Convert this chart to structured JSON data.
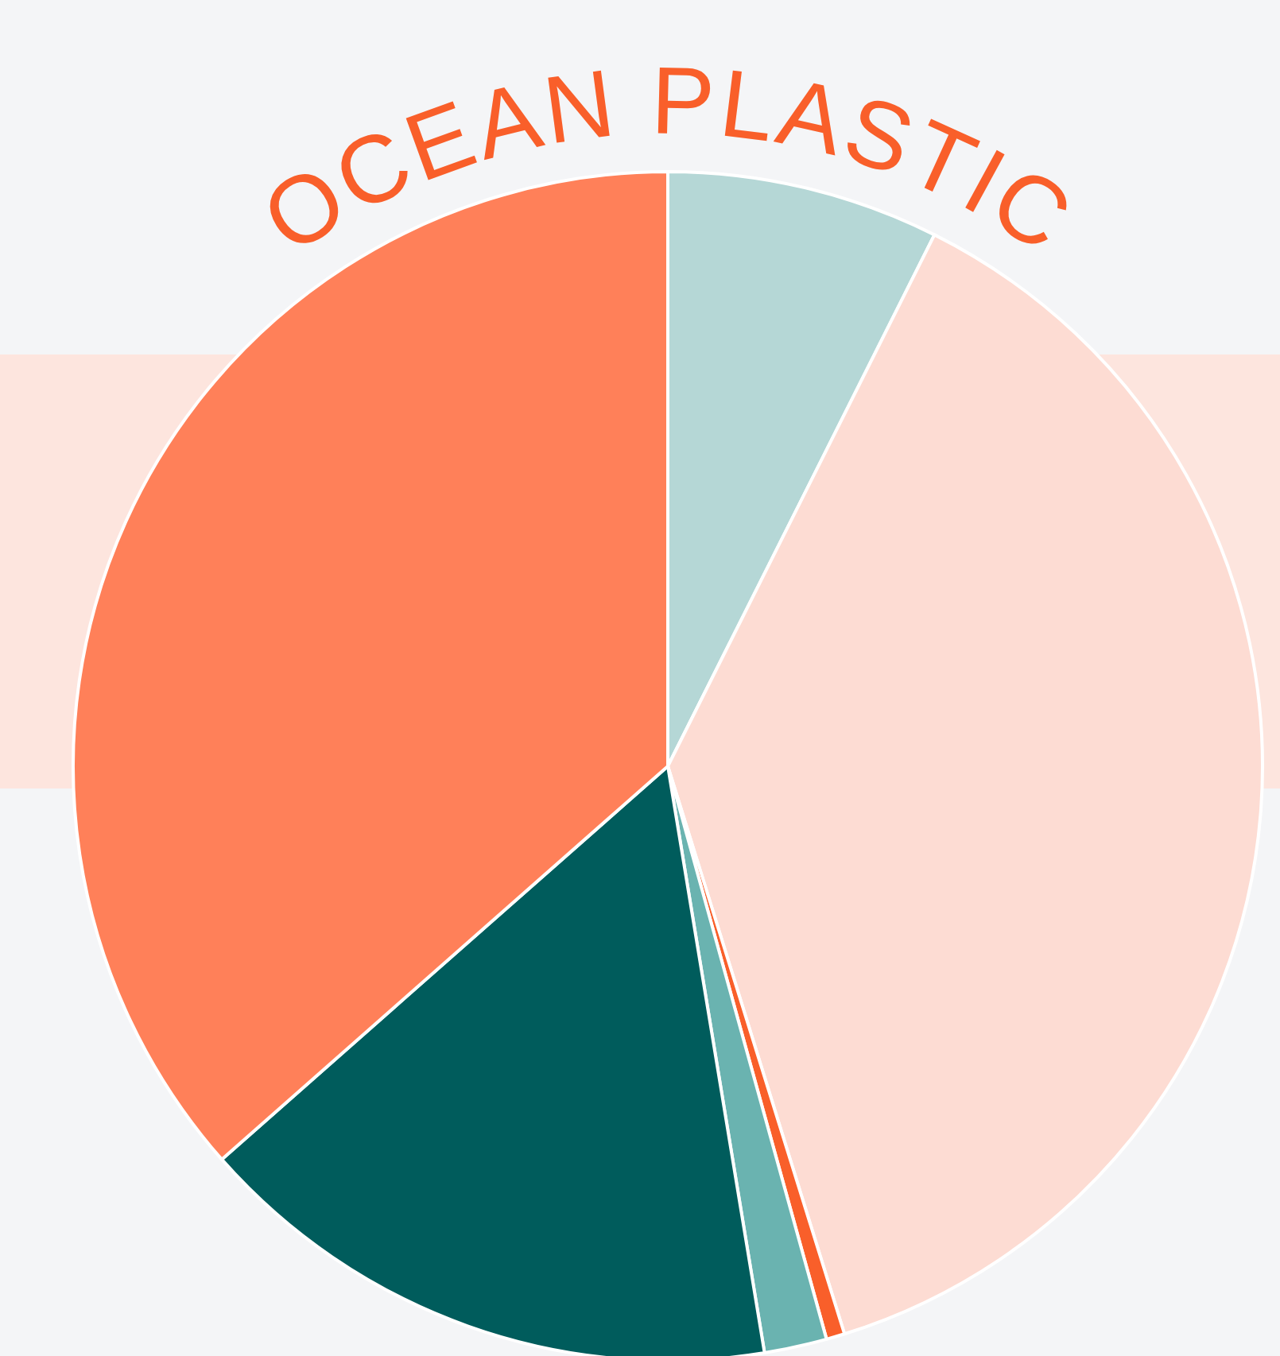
{
  "chart_data": {
    "type": "pie",
    "title": "OCEAN PLASTIC",
    "categories": [
      null,
      null,
      null,
      null,
      null,
      null
    ],
    "values": [
      7.4,
      37.8,
      0.5,
      1.7,
      16.1,
      36.5
    ],
    "colors": [
      "#b5d7d6",
      "#fddcd3",
      "#f95f2a",
      "#6ab3b0",
      "#005c5c",
      "#ff8059"
    ]
  }
}
